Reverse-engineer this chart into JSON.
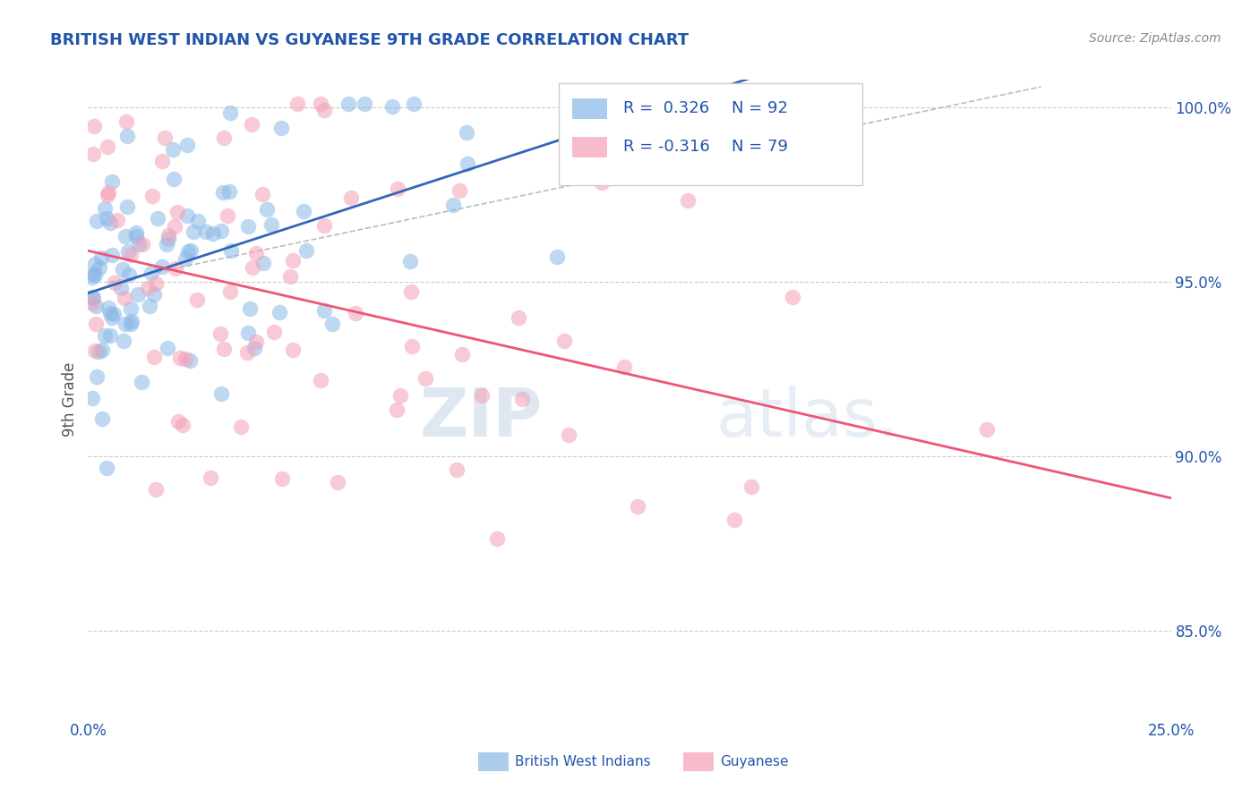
{
  "title": "BRITISH WEST INDIAN VS GUYANESE 9TH GRADE CORRELATION CHART",
  "source_text": "Source: ZipAtlas.com",
  "ylabel": "9th Grade",
  "xmin": 0.0,
  "xmax": 0.25,
  "ymin": 0.825,
  "ymax": 1.008,
  "yticks": [
    0.85,
    0.9,
    0.95,
    1.0
  ],
  "ytick_labels": [
    "85.0%",
    "90.0%",
    "95.0%",
    "100.0%"
  ],
  "xtick_left_label": "0.0%",
  "xtick_right_label": "25.0%",
  "R_blue": 0.326,
  "N_blue": 92,
  "R_pink": -0.316,
  "N_pink": 79,
  "blue_dot_color": "#8ab8e8",
  "pink_dot_color": "#f4a0b5",
  "blue_line_color": "#3366bb",
  "pink_line_color": "#ee5577",
  "blue_legend_color": "#aaccee",
  "pink_legend_color": "#f8bbcc",
  "watermark_color": "#c8d8ea",
  "title_color": "#2255aa",
  "axis_label_color": "#2255aa",
  "grid_color": "#cccccc",
  "source_color": "#888888",
  "ylabel_color": "#555555",
  "legend_label_blue": "British West Indians",
  "legend_label_pink": "Guyanese",
  "seed": 42
}
